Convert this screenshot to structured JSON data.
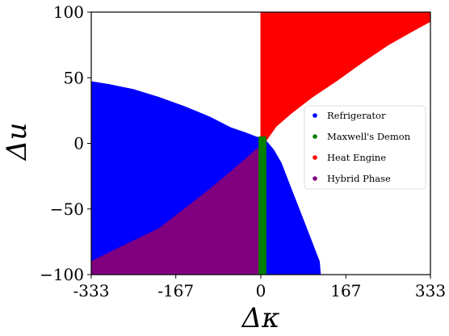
{
  "chart_data": {
    "type": "scatter",
    "title": "",
    "xlabel": "Δκ",
    "ylabel": "Δu",
    "xlim": [
      -333,
      333
    ],
    "ylim": [
      -100,
      100
    ],
    "xticks": [
      "-333",
      "-167",
      "0",
      "167",
      "333"
    ],
    "yticks": [
      "100",
      "50",
      "0",
      "−50",
      "−100"
    ],
    "legend_position": "right",
    "grid": false,
    "series": [
      {
        "name": "Refrigerator",
        "color": "#0000ff",
        "region_boundary": [
          [
            -333,
            56
          ],
          [
            -333,
            47
          ],
          [
            -300,
            45
          ],
          [
            -250,
            41
          ],
          [
            -200,
            35
          ],
          [
            -150,
            28
          ],
          [
            -100,
            20
          ],
          [
            -60,
            12
          ],
          [
            -30,
            8
          ],
          [
            -10,
            5
          ],
          [
            0,
            4
          ],
          [
            10,
            2
          ],
          [
            25,
            -5
          ],
          [
            40,
            -15
          ],
          [
            60,
            -35
          ],
          [
            80,
            -55
          ],
          [
            100,
            -75
          ],
          [
            115,
            -90
          ],
          [
            117,
            -100
          ],
          [
            -333,
            -100
          ]
        ]
      },
      {
        "name": "Maxwell's Demon",
        "color": "#008000",
        "region_boundary": [
          [
            -4,
            5
          ],
          [
            10,
            5
          ],
          [
            10,
            -100
          ],
          [
            -4,
            -100
          ]
        ]
      },
      {
        "name": "Heat Engine",
        "color": "#ff0000",
        "region_boundary": [
          [
            0,
            100
          ],
          [
            333,
            100
          ],
          [
            333,
            93
          ],
          [
            300,
            86
          ],
          [
            250,
            75
          ],
          [
            200,
            62
          ],
          [
            150,
            48
          ],
          [
            100,
            35
          ],
          [
            60,
            23
          ],
          [
            30,
            13
          ],
          [
            10,
            2
          ],
          [
            0,
            0
          ]
        ]
      },
      {
        "name": "Hybrid Phase",
        "color": "#800080",
        "region_boundary": [
          [
            -333,
            -90
          ],
          [
            -280,
            -80
          ],
          [
            -200,
            -65
          ],
          [
            -150,
            -50
          ],
          [
            -100,
            -35
          ],
          [
            -60,
            -22
          ],
          [
            -30,
            -12
          ],
          [
            -10,
            -5
          ],
          [
            0,
            -2
          ],
          [
            0,
            -100
          ],
          [
            -333,
            -100
          ]
        ]
      }
    ]
  }
}
